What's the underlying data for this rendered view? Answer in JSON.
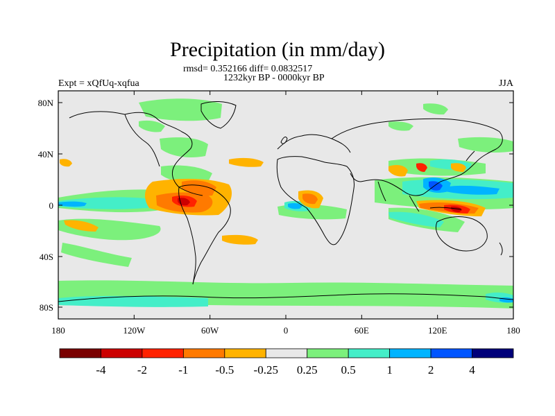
{
  "map": {
    "title": "Precipitation (in mm/day)",
    "stats_line": "rmsd= 0.352166 diff= 0.0832517",
    "period_line": "1232kyr BP - 0000kyr BP",
    "experiment": "Expt = xQfUq-xqfua",
    "season": "JJA",
    "lon_ticks": [
      "180",
      "120W",
      "60W",
      "0",
      "60E",
      "120E",
      "180"
    ],
    "lat_ticks": [
      "80N",
      "40N",
      "0",
      "40S",
      "80S"
    ],
    "background_color": "#e8e8e8"
  },
  "colorbar": {
    "colors": [
      "#7a0000",
      "#cc0000",
      "#ff2200",
      "#ff7a00",
      "#ffb300",
      "#e8e8e8",
      "#7cf07c",
      "#44eec8",
      "#00b4ff",
      "#0055ff",
      "#00007a"
    ],
    "labels": [
      "-4",
      "-2",
      "-1",
      "-0.5",
      "-0.25",
      "0.25",
      "0.5",
      "1",
      "2",
      "4"
    ]
  }
}
